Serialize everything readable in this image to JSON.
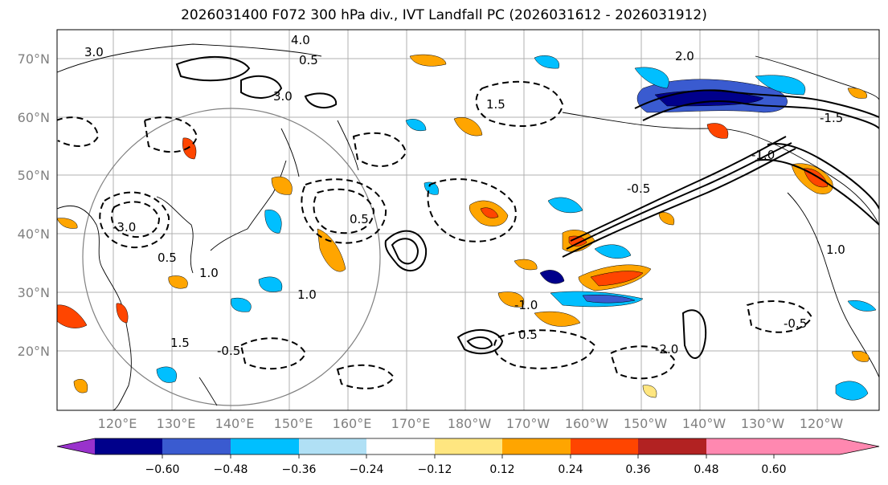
{
  "title": "2026031400 F072 300 hPa div., IVT Landfall PC (2026031612 - 2026031912)",
  "lat_labels": [
    "70°N",
    "60°N",
    "50°N",
    "40°N",
    "30°N",
    "20°N"
  ],
  "lon_labels": [
    "120°E",
    "130°E",
    "140°E",
    "150°E",
    "160°E",
    "170°E",
    "180°W",
    "170°W",
    "160°W",
    "150°W",
    "140°W",
    "130°W",
    "120°W"
  ],
  "colorbar": {
    "colors": [
      "#9932cc",
      "#00008b",
      "#3a5bd0",
      "#00bfff",
      "#b0e0f5",
      "#ffffff",
      "#ffe680",
      "#ffa500",
      "#ff4500",
      "#b22222",
      "#ff88b0"
    ],
    "ticks": [
      "−0.60",
      "−0.48",
      "−0.36",
      "−0.24",
      "−0.12",
      "0.12",
      "0.24",
      "0.36",
      "0.48",
      "0.60"
    ]
  },
  "contour_labels": [
    "4.0",
    "3.0",
    "3.0",
    "2.0",
    "1.5",
    "1.5",
    "1.0",
    "1.0",
    "1.0",
    "0.5",
    "0.5",
    "0.5",
    "0.5",
    "-0.5",
    "-0.5",
    "-0.5",
    "-1.0",
    "-1.0",
    "-1.5",
    "-2.0",
    "-3.0"
  ]
}
